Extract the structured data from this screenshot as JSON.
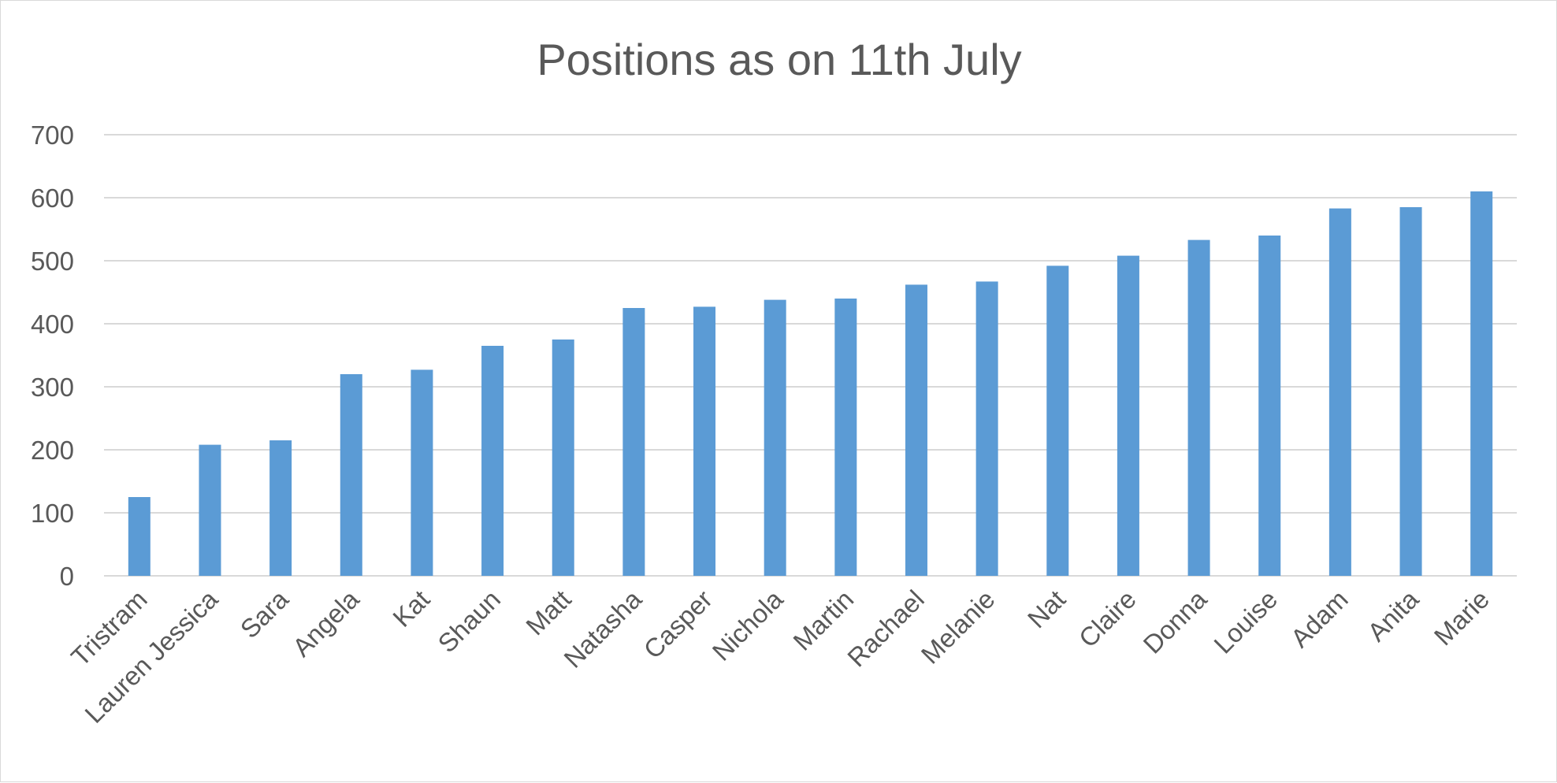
{
  "chart_data": {
    "type": "bar",
    "title": "Positions as on 11th July",
    "xlabel": "",
    "ylabel": "",
    "ylim": [
      0,
      700
    ],
    "yticks": [
      0,
      100,
      200,
      300,
      400,
      500,
      600,
      700
    ],
    "grid": true,
    "legend": "none",
    "bar_color": "#5b9bd5",
    "categories": [
      "Tristram",
      "Lauren Jessica",
      "Sara",
      "Angela",
      "Kat",
      "Shaun",
      "Matt",
      "Natasha",
      "Casper",
      "Nichola",
      "Martin",
      "Rachael",
      "Melanie",
      "Nat",
      "Claire",
      "Donna",
      "Louise",
      "Adam",
      "Anita",
      "Marie"
    ],
    "values": [
      125,
      208,
      215,
      320,
      327,
      365,
      375,
      425,
      427,
      438,
      440,
      462,
      467,
      492,
      508,
      533,
      540,
      583,
      585,
      610
    ]
  }
}
